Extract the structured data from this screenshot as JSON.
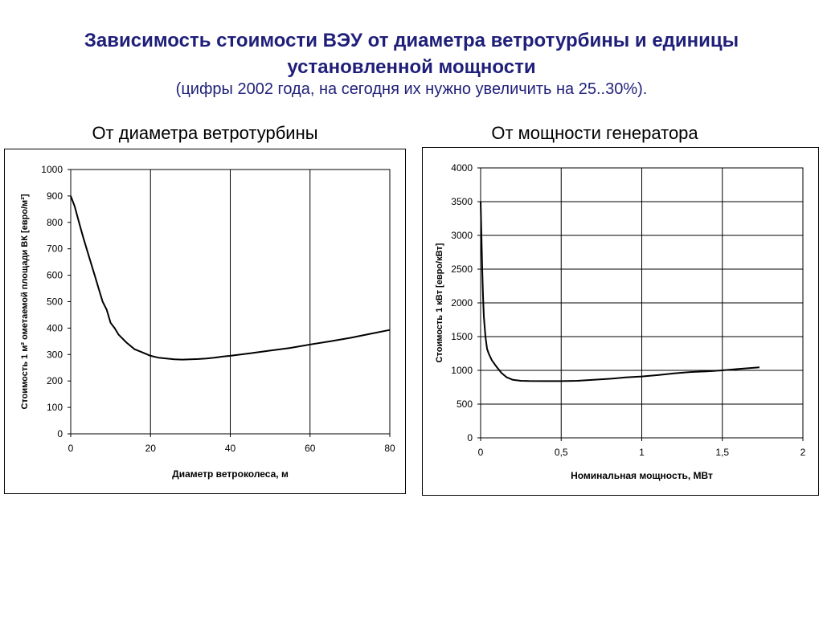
{
  "header": {
    "title_line1": "Зависимость стоимости ВЭУ от диаметра ветротурбины и единицы",
    "title_line2": "установленной мощности",
    "subtitle": "(цифры 2002 года, на сегодня их нужно увеличить на 25..30%)."
  },
  "panels": {
    "left_title": "От диаметра ветротурбины",
    "right_title": "От мощности генератора"
  },
  "colors": {
    "title": "#1f1f7a",
    "line": "#000000",
    "grid": "#000000"
  },
  "chart_data": [
    {
      "type": "line",
      "xlabel": "Диаметр ветроколеса, м",
      "ylabel": "Стоимость 1 м² ометаемой площади ВК [евро/м²]",
      "xlim": [
        0,
        80
      ],
      "ylim": [
        0,
        1000
      ],
      "xticks": [
        0,
        20,
        40,
        60,
        80
      ],
      "xtick_labels": [
        "0",
        "20",
        "40",
        "60",
        "80"
      ],
      "yticks": [
        0,
        100,
        200,
        300,
        400,
        500,
        600,
        700,
        800,
        900,
        1000
      ],
      "ytick_labels": [
        "0",
        "100",
        "200",
        "300",
        "400",
        "500",
        "600",
        "700",
        "800",
        "900",
        "1000"
      ],
      "grid": "vertical",
      "series": [
        {
          "x": [
            0,
            1,
            2,
            3,
            4,
            5,
            6,
            7,
            8,
            9,
            10,
            11,
            12,
            14,
            16,
            18,
            20,
            22,
            24,
            26,
            28,
            30,
            32,
            34,
            36,
            38,
            40,
            45,
            50,
            55,
            60,
            65,
            70,
            75,
            80
          ],
          "y": [
            900,
            860,
            805,
            750,
            700,
            650,
            600,
            550,
            500,
            470,
            420,
            400,
            375,
            345,
            320,
            308,
            295,
            288,
            285,
            282,
            281,
            282,
            283,
            285,
            288,
            292,
            295,
            305,
            315,
            325,
            338,
            350,
            363,
            378,
            393
          ]
        }
      ]
    },
    {
      "type": "line",
      "xlabel": "Номинальная мощность, МВт",
      "ylabel": "Стоимость 1 кВт [евро/кВт]",
      "xlim": [
        0,
        2
      ],
      "ylim": [
        0,
        4000
      ],
      "xticks": [
        0,
        0.5,
        1,
        1.5,
        2
      ],
      "xtick_labels": [
        "0",
        "0,5",
        "1",
        "1,5",
        "2"
      ],
      "yticks": [
        0,
        500,
        1000,
        1500,
        2000,
        2500,
        3000,
        3500,
        4000
      ],
      "ytick_labels": [
        "0",
        "500",
        "1000",
        "1500",
        "2000",
        "2500",
        "3000",
        "3500",
        "4000"
      ],
      "grid": "both",
      "series": [
        {
          "x": [
            0.0,
            0.005,
            0.01,
            0.015,
            0.02,
            0.03,
            0.04,
            0.05,
            0.07,
            0.1,
            0.13,
            0.16,
            0.2,
            0.25,
            0.3,
            0.4,
            0.5,
            0.6,
            0.7,
            0.8,
            0.9,
            1.0,
            1.1,
            1.2,
            1.3,
            1.4,
            1.5,
            1.6,
            1.73
          ],
          "y": [
            3500,
            3000,
            2500,
            2100,
            1800,
            1500,
            1320,
            1250,
            1150,
            1050,
            960,
            900,
            860,
            845,
            842,
            840,
            840,
            845,
            860,
            875,
            895,
            910,
            930,
            955,
            975,
            985,
            1000,
            1020,
            1045
          ]
        }
      ]
    }
  ]
}
